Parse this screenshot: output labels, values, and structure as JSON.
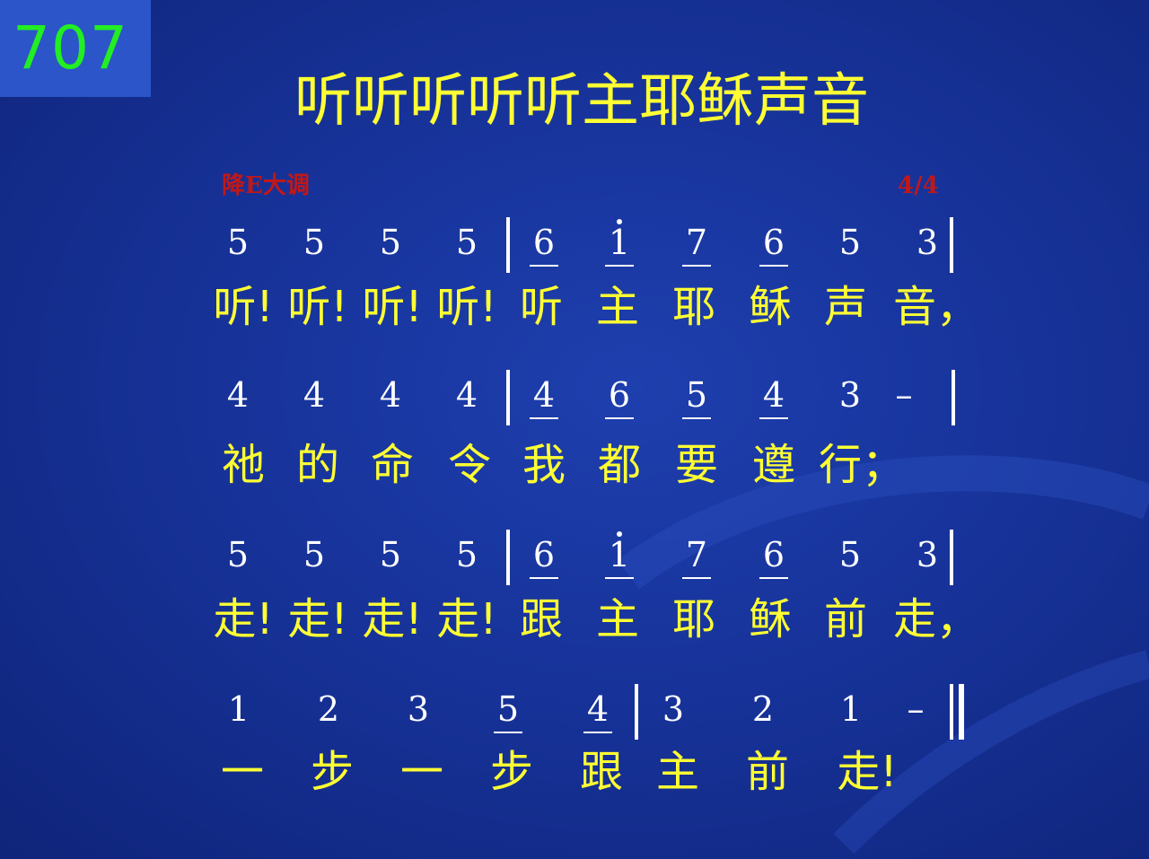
{
  "hymn_number": "707",
  "title": "听听听听听主耶稣声音",
  "key": "降E大调",
  "time_signature": "4/4",
  "systems": [
    {
      "notes": [
        {
          "t": "5"
        },
        {
          "t": "5"
        },
        {
          "t": "5"
        },
        {
          "t": "5"
        },
        {
          "t": "6",
          "u": true
        },
        {
          "t": "1",
          "u": true,
          "dot": true
        },
        {
          "t": "7",
          "u": true
        },
        {
          "t": "6",
          "u": true
        },
        {
          "t": "5"
        },
        {
          "t": "3"
        }
      ],
      "lyrics": [
        "听!",
        "听!",
        "听!",
        "听!",
        "听",
        "主",
        "耶",
        "稣",
        "声",
        "音，"
      ]
    },
    {
      "notes": [
        {
          "t": "4"
        },
        {
          "t": "4"
        },
        {
          "t": "4"
        },
        {
          "t": "4"
        },
        {
          "t": "4",
          "u": true
        },
        {
          "t": "6",
          "u": true
        },
        {
          "t": "5",
          "u": true
        },
        {
          "t": "4",
          "u": true
        },
        {
          "t": "3"
        },
        {
          "t": "–"
        }
      ],
      "lyrics": [
        "祂",
        "的",
        "命",
        "令",
        "我",
        "都",
        "要",
        "遵",
        "行；"
      ]
    },
    {
      "notes": [
        {
          "t": "5"
        },
        {
          "t": "5"
        },
        {
          "t": "5"
        },
        {
          "t": "5"
        },
        {
          "t": "6",
          "u": true
        },
        {
          "t": "1",
          "u": true,
          "dot": true
        },
        {
          "t": "7",
          "u": true
        },
        {
          "t": "6",
          "u": true
        },
        {
          "t": "5"
        },
        {
          "t": "3"
        }
      ],
      "lyrics": [
        "走!",
        "走!",
        "走!",
        "走!",
        "跟",
        "主",
        "耶",
        "稣",
        "前",
        "走，"
      ]
    },
    {
      "notes": [
        {
          "t": "1"
        },
        {
          "t": "2"
        },
        {
          "t": "3"
        },
        {
          "t": "5",
          "u": true
        },
        {
          "t": "4",
          "u": true
        },
        {
          "t": "3"
        },
        {
          "t": "2"
        },
        {
          "t": "1"
        },
        {
          "t": "–"
        }
      ],
      "lyrics": [
        "一",
        "步",
        "一",
        "步",
        "跟",
        "主",
        "前",
        "走!"
      ]
    }
  ]
}
